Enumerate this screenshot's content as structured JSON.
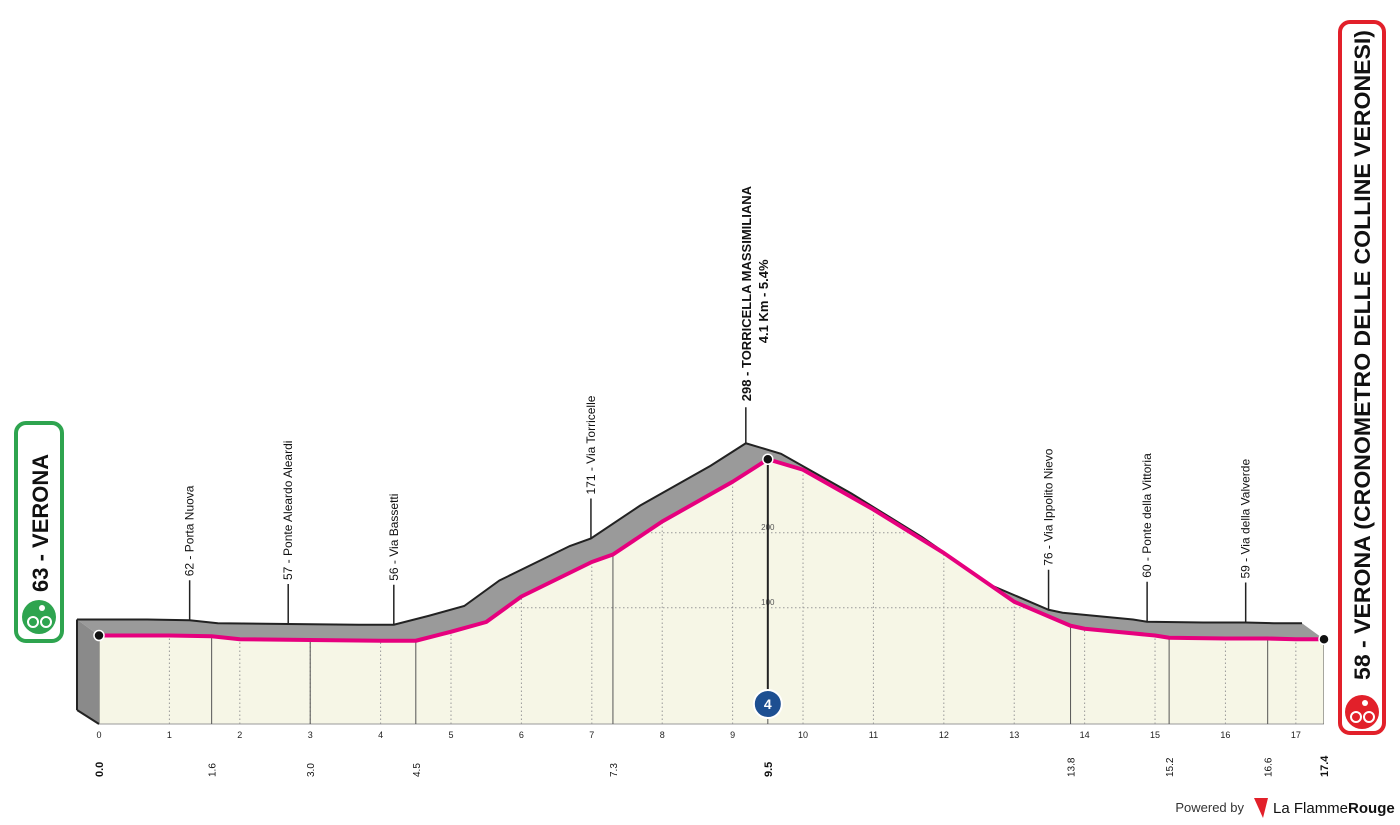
{
  "chart_data": {
    "type": "area",
    "start_label": "63 - VERONA",
    "finish_label": "58 - VERONA (CRONOMETRO DELLE COLLINE VERONESI)",
    "x": [
      0,
      1,
      1.6,
      2,
      3,
      4,
      4.5,
      5,
      5.5,
      6,
      7,
      7.3,
      8,
      9,
      9.5,
      10,
      11,
      12,
      13,
      13.8,
      14,
      15,
      15.2,
      16,
      16.6,
      17,
      17.4
    ],
    "values": [
      63,
      63,
      62,
      58,
      57,
      56,
      56,
      68,
      81,
      115,
      161,
      171,
      215,
      268,
      298,
      284,
      231,
      173,
      108,
      76,
      72,
      63,
      60,
      59,
      59,
      58,
      58
    ],
    "color": "#e6007e",
    "fill": "#f6f6e6",
    "xlim": [
      0,
      17.4
    ],
    "ylim": [
      -55,
      345
    ],
    "xticks": [
      0,
      1,
      2,
      3,
      4,
      5,
      6,
      7,
      8,
      9,
      10,
      11,
      12,
      13,
      14,
      15,
      16,
      17
    ],
    "yticks": [
      100,
      200
    ],
    "xmarks": [
      {
        "value": 0,
        "label": "0.0"
      },
      1.6,
      {
        "value": 3,
        "label": "3.0"
      },
      4.5,
      7.3,
      9.5,
      13.8,
      15.2,
      16.6,
      17.4
    ],
    "annotations": [
      {
        "label": "62 - Porta Nuova",
        "x": 1.6
      },
      {
        "label": "57 - Ponte Aleardo Aleardi",
        "x": 3
      },
      {
        "label": "56 - Via Bassetti",
        "x": 4.5
      },
      {
        "label": "171 - Via Torricelle",
        "x": 7.3
      },
      {
        "label": "76 - Via Ippolito Nievo",
        "x": 13.8
      },
      {
        "label": "60 - Ponte della Vittoria",
        "x": 15.2
      },
      {
        "label": "59 - Via della Valverde",
        "x": 16.6
      }
    ],
    "summit": {
      "label": "298 - TORRICELLA MASSIMILIANA",
      "detail": "4.1 Km - 5.4%",
      "x": 9.5,
      "category": "4"
    }
  },
  "footer": {
    "powered": "Powered by",
    "brand": "La Flamme",
    "brand_accent": "Rouge"
  }
}
